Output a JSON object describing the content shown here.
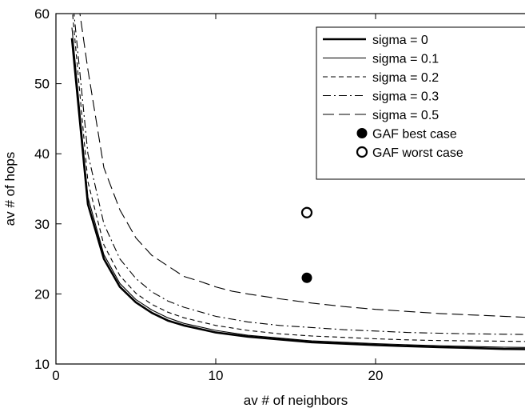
{
  "chart_data": {
    "type": "line",
    "xlabel": "av # of neighbors",
    "ylabel": "av # of hops",
    "xlim": [
      0,
      30
    ],
    "ylim": [
      10,
      60
    ],
    "xticks": [
      0,
      10,
      20,
      30
    ],
    "yticks": [
      10,
      20,
      30,
      40,
      50,
      60
    ],
    "legend_position": "top-right",
    "series": [
      {
        "name": "sigma = 0",
        "style": "solid-thick",
        "x": [
          1,
          2,
          3,
          4,
          5,
          6,
          7,
          8,
          10,
          12,
          14,
          16,
          18,
          20,
          22,
          24,
          26,
          28,
          30
        ],
        "y": [
          56.5,
          32.8,
          25.0,
          21.0,
          18.8,
          17.3,
          16.2,
          15.5,
          14.5,
          13.9,
          13.5,
          13.1,
          12.9,
          12.7,
          12.55,
          12.4,
          12.3,
          12.15,
          12.1
        ]
      },
      {
        "name": "sigma = 0.1",
        "style": "solid-thin",
        "x": [
          1,
          2,
          3,
          4,
          5,
          6,
          7,
          8,
          10,
          12,
          14,
          16,
          18,
          20,
          22,
          24,
          26,
          28,
          30
        ],
        "y": [
          58.0,
          33.8,
          25.6,
          21.5,
          19.2,
          17.7,
          16.6,
          15.8,
          14.8,
          14.1,
          13.7,
          13.3,
          13.1,
          12.9,
          12.75,
          12.6,
          12.5,
          12.4,
          12.35
        ]
      },
      {
        "name": "sigma = 0.2",
        "style": "dashed",
        "x": [
          1,
          2,
          3,
          4,
          5,
          6,
          7,
          8,
          10,
          12,
          14,
          16,
          18,
          20,
          22,
          24,
          26,
          28,
          30
        ],
        "y": [
          61.0,
          36.0,
          27.0,
          22.6,
          20.1,
          18.5,
          17.4,
          16.6,
          15.5,
          14.8,
          14.3,
          14.0,
          13.8,
          13.6,
          13.45,
          13.35,
          13.3,
          13.25,
          13.2
        ]
      },
      {
        "name": "sigma = 0.3",
        "style": "dash-dot",
        "x": [
          1,
          2,
          3,
          4,
          5,
          6,
          7,
          8,
          10,
          12,
          14,
          16,
          18,
          20,
          22,
          24,
          26,
          28,
          30
        ],
        "y": [
          63.0,
          40.0,
          30.0,
          25.0,
          22.2,
          20.3,
          19.0,
          18.1,
          16.8,
          16.0,
          15.5,
          15.2,
          14.9,
          14.7,
          14.5,
          14.4,
          14.3,
          14.25,
          14.2
        ]
      },
      {
        "name": "sigma = 0.5",
        "style": "long-dash",
        "x": [
          1,
          2,
          3,
          4,
          5,
          6,
          7,
          8,
          9,
          10,
          11,
          12,
          14,
          16,
          18,
          20,
          22,
          24,
          26,
          28,
          30
        ],
        "y": [
          68.0,
          52.0,
          38.0,
          32.0,
          28.0,
          25.5,
          24.0,
          22.5,
          21.8,
          21.0,
          20.4,
          20.0,
          19.3,
          18.7,
          18.2,
          17.8,
          17.5,
          17.2,
          17.0,
          16.8,
          16.6
        ]
      }
    ],
    "points": [
      {
        "name": "GAF best case",
        "marker": "filled-circle",
        "x": 15.7,
        "y": 22.3
      },
      {
        "name": "GAF worst case",
        "marker": "open-circle",
        "x": 15.7,
        "y": 31.6
      }
    ]
  }
}
